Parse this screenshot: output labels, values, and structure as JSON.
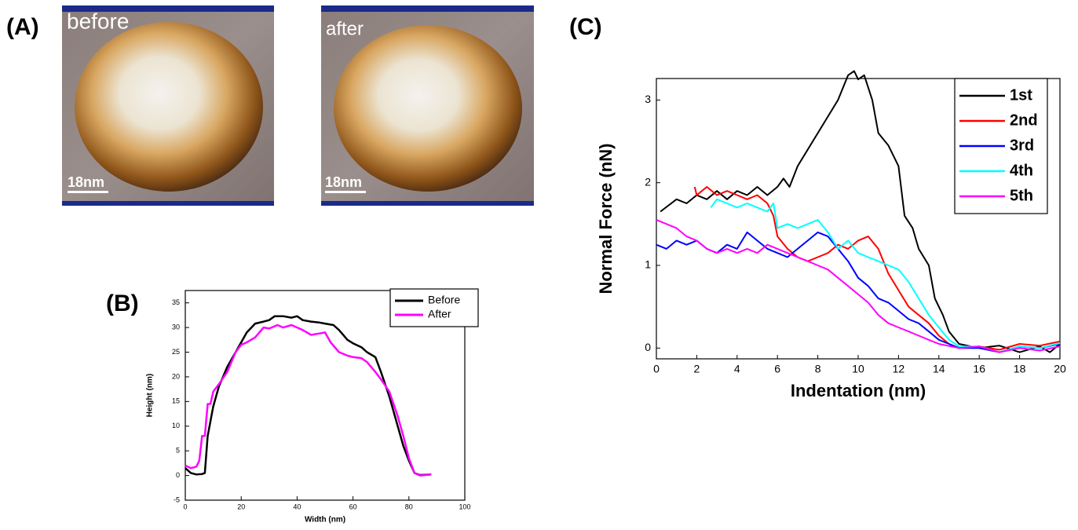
{
  "panel_a": {
    "label": "(A)",
    "images": [
      {
        "caption": "before",
        "scale_bar": "18nm"
      },
      {
        "caption": "after",
        "scale_bar": "18nm"
      }
    ]
  },
  "chart_data": [
    {
      "type": "line",
      "panel_label": "(B)",
      "x_label": "Width (nm)",
      "y_label": "Height (nm)",
      "xlim": [
        0,
        100
      ],
      "xticks": [
        0,
        20,
        40,
        60,
        80,
        100
      ],
      "ylim": [
        -5,
        37.5
      ],
      "yticks": [
        -5,
        0,
        5,
        10,
        15,
        20,
        25,
        30,
        35
      ],
      "legend": "upper right",
      "series": [
        {
          "name": "Before",
          "color": "#000000",
          "x": [
            0,
            2,
            4,
            6,
            7,
            8,
            10,
            12,
            15,
            18,
            20,
            22,
            25,
            28,
            30,
            32,
            35,
            38,
            40,
            42,
            45,
            48,
            50,
            53,
            55,
            58,
            60,
            63,
            65,
            68,
            70,
            73,
            76,
            78,
            80,
            82,
            84,
            88
          ],
          "values": [
            1.5,
            0.5,
            0.2,
            0.3,
            0.5,
            8,
            14,
            18,
            22,
            25,
            27,
            29,
            30.8,
            31.2,
            31.5,
            32.3,
            32.3,
            32,
            32.3,
            31.5,
            31.2,
            31,
            30.8,
            30.5,
            29.5,
            27.5,
            26.8,
            26,
            25,
            24,
            21,
            16,
            10,
            6,
            3,
            0.5,
            0.1,
            0.2
          ]
        },
        {
          "name": "After",
          "color": "#ff00ff",
          "x": [
            0,
            2,
            4,
            5,
            6,
            7,
            8,
            9,
            10,
            12,
            15,
            18,
            20,
            22,
            25,
            28,
            30,
            33,
            35,
            38,
            40,
            42,
            45,
            48,
            50,
            52,
            55,
            58,
            60,
            63,
            65,
            68,
            70,
            73,
            76,
            78,
            80,
            82,
            84,
            88
          ],
          "values": [
            2,
            1.5,
            1.8,
            3,
            8,
            8,
            14.5,
            14.5,
            17,
            18.5,
            21,
            25,
            26.5,
            27,
            28,
            30,
            29.8,
            30.5,
            30,
            30.5,
            30,
            29.5,
            28.5,
            28.8,
            29,
            27,
            25,
            24.3,
            24,
            23.8,
            23,
            21,
            19.5,
            17,
            12,
            8,
            3.5,
            0.5,
            0,
            0.2
          ]
        }
      ]
    },
    {
      "type": "line",
      "panel_label": "(C)",
      "x_label": "Indentation (nm)",
      "y_label": "Normal Force (nN)",
      "xlim": [
        0,
        20
      ],
      "xticks": [
        0,
        2,
        4,
        6,
        8,
        10,
        12,
        14,
        16,
        18,
        20
      ],
      "ylim": [
        -0.13,
        3.26
      ],
      "yticks": [
        0,
        1,
        2,
        3
      ],
      "legend": "upper right",
      "series": [
        {
          "name": "1st",
          "color": "#000000",
          "x": [
            0.2,
            1,
            1.5,
            2,
            2.5,
            3,
            3.5,
            4,
            4.5,
            5,
            5.5,
            6,
            6.3,
            6.6,
            7,
            8,
            9,
            9.5,
            9.8,
            10,
            10.3,
            10.7,
            11,
            11.5,
            12,
            12.3,
            12.7,
            13,
            13.5,
            13.8,
            14.2,
            14.5,
            15,
            16,
            17,
            18,
            19,
            19.5,
            20
          ],
          "values": [
            1.65,
            1.8,
            1.75,
            1.85,
            1.8,
            1.9,
            1.8,
            1.9,
            1.85,
            1.95,
            1.85,
            1.95,
            2.05,
            1.95,
            2.2,
            2.6,
            3.0,
            3.3,
            3.35,
            3.25,
            3.3,
            3.0,
            2.6,
            2.45,
            2.2,
            1.6,
            1.45,
            1.2,
            1.0,
            0.6,
            0.4,
            0.2,
            0.05,
            0,
            0.03,
            -0.05,
            0.02,
            -0.05,
            0.05
          ]
        },
        {
          "name": "2nd",
          "color": "#ff0000",
          "x": [
            1.9,
            2,
            2.5,
            3,
            3.5,
            4,
            4.5,
            5,
            5.5,
            5.8,
            6,
            6.5,
            7,
            7.5,
            8,
            8.5,
            9,
            9.5,
            10,
            10.5,
            11,
            11.5,
            12,
            12.5,
            13,
            13.5,
            14,
            14.5,
            15,
            16,
            17,
            18,
            19,
            20
          ],
          "values": [
            1.95,
            1.85,
            1.95,
            1.85,
            1.9,
            1.85,
            1.8,
            1.85,
            1.75,
            1.6,
            1.35,
            1.2,
            1.1,
            1.05,
            1.1,
            1.15,
            1.25,
            1.2,
            1.3,
            1.35,
            1.2,
            0.9,
            0.7,
            0.5,
            0.4,
            0.3,
            0.15,
            0.05,
            0,
            0.02,
            -0.02,
            0.05,
            0.03,
            0.08
          ]
        },
        {
          "name": "3rd",
          "color": "#0000ff",
          "x": [
            0,
            0.5,
            1,
            1.5,
            2,
            2.5,
            3,
            3.5,
            4,
            4.5,
            5,
            5.5,
            6,
            6.5,
            7,
            7.5,
            8,
            8.5,
            9,
            9.5,
            10,
            10.5,
            11,
            11.5,
            12,
            12.5,
            13,
            13.5,
            14,
            14.5,
            15,
            16,
            17,
            18,
            19,
            20
          ],
          "values": [
            1.25,
            1.2,
            1.3,
            1.25,
            1.3,
            1.2,
            1.15,
            1.25,
            1.2,
            1.4,
            1.3,
            1.2,
            1.15,
            1.1,
            1.2,
            1.3,
            1.4,
            1.35,
            1.2,
            1.05,
            0.85,
            0.75,
            0.6,
            0.55,
            0.45,
            0.35,
            0.3,
            0.2,
            0.1,
            0.05,
            0,
            0,
            -0.05,
            0.02,
            0,
            0.05
          ]
        },
        {
          "name": "4th",
          "color": "#00ffff",
          "x": [
            2.7,
            3,
            3.5,
            4,
            4.5,
            5,
            5.5,
            5.8,
            6,
            6.5,
            7,
            7.5,
            8,
            8.5,
            9,
            9.5,
            10,
            10.5,
            11,
            11.5,
            12,
            12.5,
            13,
            13.5,
            14,
            14.5,
            15,
            16,
            17,
            18,
            19,
            20
          ],
          "values": [
            1.7,
            1.8,
            1.75,
            1.7,
            1.75,
            1.7,
            1.65,
            1.75,
            1.45,
            1.5,
            1.45,
            1.5,
            1.55,
            1.4,
            1.2,
            1.3,
            1.15,
            1.1,
            1.05,
            1.0,
            0.95,
            0.8,
            0.6,
            0.4,
            0.25,
            0.1,
            0.02,
            0.02,
            -0.05,
            0.02,
            0,
            0.06
          ]
        },
        {
          "name": "5th",
          "color": "#ff00ff",
          "x": [
            0,
            0.5,
            1,
            1.5,
            2,
            2.5,
            3,
            3.5,
            4,
            4.5,
            5,
            5.5,
            6,
            6.5,
            7,
            7.5,
            8,
            8.5,
            9,
            9.5,
            10,
            10.5,
            11,
            11.5,
            12,
            12.5,
            13,
            13.5,
            14,
            15,
            16,
            17,
            18,
            19,
            20
          ],
          "values": [
            1.55,
            1.5,
            1.45,
            1.35,
            1.3,
            1.2,
            1.15,
            1.2,
            1.15,
            1.2,
            1.15,
            1.25,
            1.2,
            1.15,
            1.1,
            1.05,
            1.0,
            0.95,
            0.85,
            0.75,
            0.65,
            0.55,
            0.4,
            0.3,
            0.25,
            0.2,
            0.15,
            0.1,
            0.05,
            0,
            0.02,
            -0.05,
            0,
            -0.03,
            0.02
          ]
        }
      ]
    }
  ]
}
